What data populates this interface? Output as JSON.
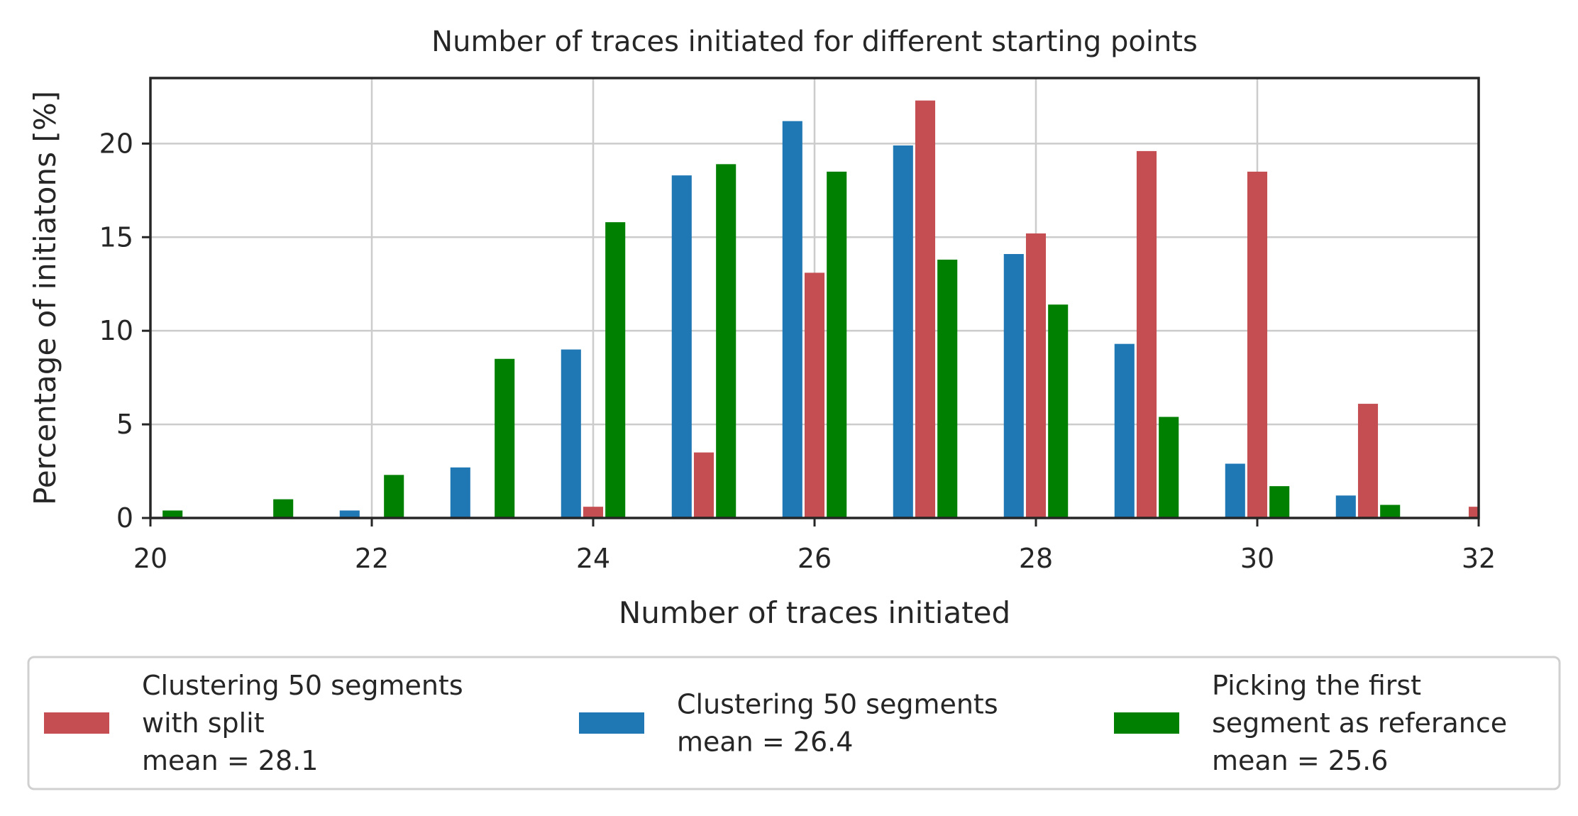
{
  "chart_data": {
    "type": "bar",
    "title": "Number of traces initiated for different starting points",
    "xlabel": "Number of traces initiated",
    "ylabel": "Percentage of initiatons [%]",
    "xlim": [
      20,
      32
    ],
    "ylim": [
      0,
      23.5
    ],
    "xticks": [
      20,
      22,
      24,
      26,
      28,
      30,
      32
    ],
    "yticks": [
      0,
      5,
      10,
      15,
      20
    ],
    "grid": true,
    "legend_position": "bottom",
    "series": [
      {
        "name": "Clustering 50 segments with split mean = 28.1",
        "legend_lines": [
          "Clustering 50 segments",
          "with split",
          "mean = 28.1"
        ],
        "color": "#c44e52",
        "x": [
          24,
          25,
          26,
          27,
          28,
          29,
          30,
          31,
          32
        ],
        "values": [
          0.6,
          3.5,
          13.1,
          22.3,
          15.2,
          19.6,
          18.5,
          6.1,
          0.6
        ]
      },
      {
        "name": "Clustering 50 segments mean = 26.4",
        "legend_lines": [
          "Clustering 50 segments",
          "mean = 26.4"
        ],
        "color": "#1f77b4",
        "x": [
          22,
          23,
          24,
          25,
          26,
          27,
          28,
          29,
          30,
          31
        ],
        "values": [
          0.4,
          2.7,
          9.0,
          18.3,
          21.2,
          19.9,
          14.1,
          9.3,
          2.9,
          1.2
        ]
      },
      {
        "name": "Picking the first segment as referance mean = 25.6",
        "legend_lines": [
          "Picking the first",
          "segment as referance",
          "mean = 25.6"
        ],
        "color": "#008000",
        "x": [
          20,
          21,
          22,
          23,
          24,
          25,
          26,
          27,
          28,
          29,
          30,
          31
        ],
        "values": [
          0.4,
          1.0,
          2.3,
          8.5,
          15.8,
          18.9,
          18.5,
          13.8,
          11.4,
          5.4,
          1.7,
          0.7
        ]
      }
    ]
  }
}
